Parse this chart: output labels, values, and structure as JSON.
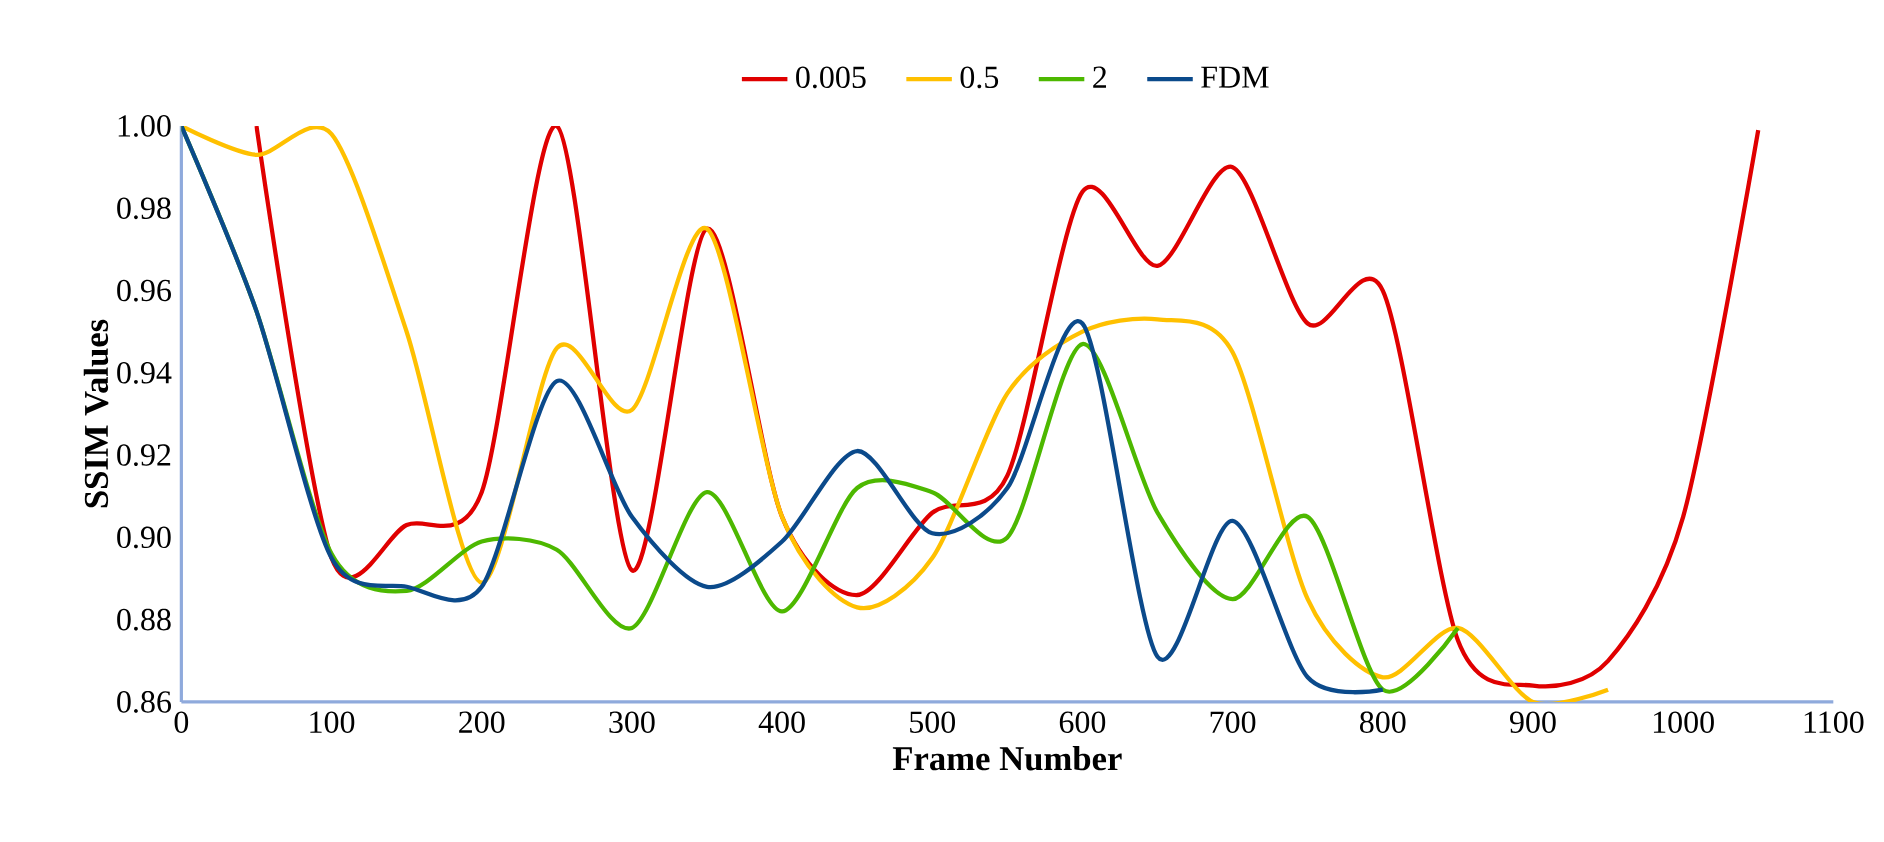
{
  "chart_data": {
    "type": "line",
    "xlabel": "Frame Number",
    "ylabel": "SSIM Values",
    "xlim": [
      0,
      1100
    ],
    "ylim": [
      0.86,
      1.0
    ],
    "xticks": [
      0,
      100,
      200,
      300,
      400,
      500,
      600,
      700,
      800,
      900,
      1000,
      1100
    ],
    "yticks": [
      {
        "value": 0.86,
        "label": "0.86"
      },
      {
        "value": 0.88,
        "label": "0.88"
      },
      {
        "value": 0.9,
        "label": "0.90"
      },
      {
        "value": 0.92,
        "label": "0.92"
      },
      {
        "value": 0.94,
        "label": "0.94"
      },
      {
        "value": 0.96,
        "label": "0.96"
      },
      {
        "value": 0.98,
        "label": "0.98"
      },
      {
        "value": 1.0,
        "label": "1.00"
      }
    ],
    "grid": false,
    "legend": "top",
    "marker": "none",
    "line_style": "solid",
    "series": [
      {
        "name": "0.005",
        "color": "#e00000",
        "x": [
          50,
          100,
          150,
          200,
          250,
          300,
          350,
          400,
          450,
          500,
          550,
          600,
          650,
          700,
          750,
          800,
          850,
          900,
          950,
          1000,
          1050
        ],
        "values": [
          1.0,
          0.895,
          0.903,
          0.911,
          1.0,
          0.892,
          0.975,
          0.905,
          0.886,
          0.906,
          0.915,
          0.984,
          0.966,
          0.99,
          0.952,
          0.96,
          0.875,
          0.864,
          0.87,
          0.905,
          0.999
        ]
      },
      {
        "name": "0.5",
        "color": "#ffc000",
        "x": [
          0,
          50,
          100,
          150,
          200,
          250,
          300,
          350,
          400,
          450,
          500,
          550,
          600,
          650,
          700,
          750,
          800,
          850,
          900,
          950
        ],
        "values": [
          1.0,
          0.993,
          0.998,
          0.95,
          0.889,
          0.946,
          0.931,
          0.975,
          0.905,
          0.883,
          0.895,
          0.935,
          0.95,
          0.953,
          0.945,
          0.885,
          0.866,
          0.878,
          0.86,
          0.863
        ]
      },
      {
        "name": "2",
        "color": "#4db800",
        "x": [
          0,
          50,
          100,
          150,
          200,
          250,
          300,
          350,
          400,
          450,
          500,
          550,
          600,
          650,
          700,
          750,
          800,
          850
        ],
        "values": [
          1.0,
          0.955,
          0.896,
          0.887,
          0.899,
          0.897,
          0.878,
          0.911,
          0.882,
          0.912,
          0.911,
          0.9,
          0.947,
          0.906,
          0.885,
          0.905,
          0.863,
          0.878
        ]
      },
      {
        "name": "FDM",
        "color": "#0b4a8b",
        "x": [
          0,
          50,
          100,
          150,
          200,
          250,
          300,
          350,
          400,
          450,
          500,
          550,
          600,
          650,
          700,
          750,
          800
        ],
        "values": [
          1.0,
          0.955,
          0.895,
          0.888,
          0.888,
          0.938,
          0.905,
          0.888,
          0.899,
          0.921,
          0.901,
          0.912,
          0.952,
          0.871,
          0.904,
          0.866,
          0.863
        ]
      }
    ]
  }
}
